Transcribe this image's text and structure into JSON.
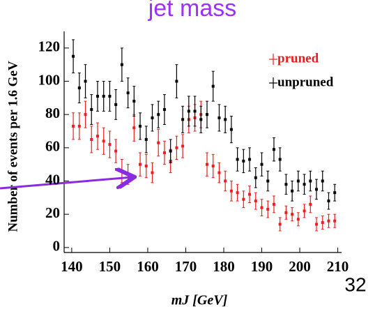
{
  "chart_data": {
    "type": "scatter",
    "title": "jet mass",
    "x_label": "mJ [GeV]",
    "y_label": "Number of events per 1.6 GeV",
    "page_number": "32",
    "x": [
      140.4,
      142,
      143.6,
      145.2,
      146.8,
      148.4,
      150,
      151.6,
      153.2,
      154.8,
      156.4,
      158,
      159.6,
      161.2,
      162.8,
      164.4,
      166,
      167.6,
      169.2,
      170.8,
      172.4,
      174,
      175.6,
      177.2,
      178.8,
      180.4,
      182,
      183.6,
      185.2,
      186.8,
      188.4,
      190,
      191.6,
      193.2,
      194.8,
      196.4,
      198,
      199.6,
      201.2,
      202.8,
      204.4,
      206,
      207.6,
      209.2
    ],
    "series": [
      {
        "name": "pruned",
        "color": "#ee1c1c",
        "values": [
          73,
          73,
          80,
          65,
          67,
          64,
          62,
          58,
          46,
          44,
          72,
          50,
          49,
          45,
          63,
          57,
          52,
          60,
          61,
          77,
          78,
          80,
          50,
          49,
          45,
          40,
          34,
          33,
          29,
          32,
          28,
          24,
          23,
          26,
          14,
          21,
          20,
          17,
          22,
          26,
          14,
          15,
          16,
          16
        ],
        "errors": [
          8,
          8,
          8,
          8,
          8,
          8,
          8,
          7,
          7,
          6,
          8,
          7,
          7,
          6,
          8,
          7,
          7,
          7,
          7,
          8,
          8,
          8,
          7,
          7,
          6,
          6,
          6,
          5,
          5,
          5,
          5,
          5,
          5,
          5,
          4,
          4,
          4,
          4,
          4,
          5,
          4,
          4,
          4,
          4
        ]
      },
      {
        "name": "unpruned",
        "color": "#000000",
        "values": [
          115,
          96,
          100,
          83,
          91,
          91,
          91,
          86,
          110,
          93,
          88,
          73,
          65,
          78,
          80,
          83,
          58,
          100,
          77,
          82,
          82,
          77,
          80,
          97,
          78,
          77,
          71,
          53,
          52,
          53,
          42,
          50,
          40,
          59,
          53,
          38,
          34,
          40,
          38,
          40,
          35,
          40,
          28,
          33
        ],
        "errors": [
          10,
          9,
          10,
          9,
          9,
          9,
          9,
          9,
          10,
          9,
          9,
          8,
          8,
          8,
          8,
          9,
          7,
          10,
          8,
          9,
          9,
          8,
          8,
          9,
          8,
          8,
          8,
          7,
          7,
          7,
          6,
          7,
          6,
          7,
          7,
          6,
          6,
          6,
          6,
          6,
          6,
          6,
          5,
          5
        ]
      }
    ],
    "xlim": [
      138,
      211
    ],
    "ylim": [
      -3,
      130
    ],
    "xticks": [
      140,
      150,
      160,
      170,
      180,
      190,
      200,
      210
    ],
    "yticks": [
      0,
      20,
      40,
      60,
      80,
      100,
      120
    ],
    "legend": "top-right"
  }
}
